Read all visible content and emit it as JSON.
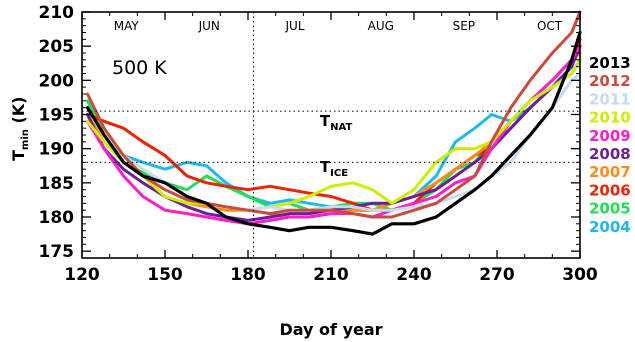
{
  "chart_data": {
    "type": "line",
    "xlabel": "Day of year",
    "ylabel": {
      "main": "T",
      "sub": "min",
      "unit": " (K)"
    },
    "xlim": [
      120,
      300
    ],
    "ylim": [
      174,
      210
    ],
    "x_ticks": [
      120,
      150,
      180,
      210,
      240,
      270,
      300
    ],
    "y_ticks": [
      175,
      180,
      185,
      190,
      195,
      200,
      205,
      210
    ],
    "annotation": "500 K",
    "months": [
      {
        "label": "MAY",
        "center": 136
      },
      {
        "label": "JUN",
        "center": 166
      },
      {
        "label": "JUL",
        "center": 197
      },
      {
        "label": "AUG",
        "center": 228
      },
      {
        "label": "SEP",
        "center": 258
      },
      {
        "label": "OCT",
        "center": 289
      }
    ],
    "vertical_marker": 182,
    "reference_lines": [
      {
        "main": "T",
        "sub": "NAT",
        "value": 195.5,
        "label_x": 206,
        "label_y": 193.3
      },
      {
        "main": "T",
        "sub": "ICE",
        "value": 188,
        "label_x": 206,
        "label_y": 186.6
      }
    ],
    "grid": false,
    "legend_position": "right",
    "series": [
      {
        "name": "2004",
        "color": "#1fb8ee",
        "x": [
          122,
          128,
          135,
          142,
          150,
          158,
          165,
          172,
          180,
          188,
          195,
          202,
          210,
          218,
          225,
          232,
          240,
          248,
          255,
          262,
          268,
          275,
          282,
          290,
          297,
          300
        ],
        "y": [
          196,
          192,
          189,
          188,
          187,
          188,
          187.5,
          185,
          183,
          182,
          182.5,
          182,
          181.5,
          181,
          181,
          182,
          183,
          186,
          191,
          193,
          195,
          194,
          196,
          199,
          201,
          203
        ]
      },
      {
        "name": "2005",
        "color": "#22dd55",
        "x": [
          122,
          128,
          135,
          142,
          150,
          158,
          165,
          172,
          180,
          188,
          195,
          202,
          210,
          218,
          225,
          232,
          240,
          248,
          255,
          262,
          268,
          275,
          282,
          290,
          297,
          300
        ],
        "y": [
          197,
          192,
          188,
          186.5,
          185,
          184,
          186,
          184.5,
          183,
          181.5,
          182,
          181,
          181.5,
          182,
          182,
          181,
          182,
          184,
          187,
          188,
          191,
          194,
          197,
          200,
          203,
          205
        ]
      },
      {
        "name": "2006",
        "color": "#ee2200",
        "x": [
          122,
          128,
          135,
          142,
          150,
          158,
          165,
          172,
          180,
          188,
          195,
          202,
          210,
          218,
          225,
          232,
          240,
          248,
          255,
          262,
          268,
          275,
          282,
          290,
          297,
          300
        ],
        "y": [
          195,
          194,
          193,
          191,
          189,
          186,
          185,
          184.5,
          184,
          184.5,
          184,
          183.5,
          183,
          182,
          181,
          181,
          182,
          185,
          187,
          189,
          190,
          193,
          196,
          199,
          202,
          206
        ]
      },
      {
        "name": "2007",
        "color": "#ff8c1a",
        "x": [
          122,
          128,
          135,
          142,
          150,
          158,
          165,
          172,
          180,
          188,
          195,
          202,
          210,
          218,
          225,
          232,
          240,
          248,
          255,
          262,
          268,
          275,
          282,
          290,
          297,
          300
        ],
        "y": [
          195,
          191,
          188,
          186,
          183,
          182,
          181.5,
          181,
          181,
          180.5,
          180,
          180,
          180.5,
          181,
          181,
          182,
          183,
          185,
          187,
          189,
          191,
          194,
          197,
          200,
          203,
          204
        ]
      },
      {
        "name": "2008",
        "color": "#6a1f9c",
        "x": [
          122,
          128,
          135,
          142,
          150,
          158,
          165,
          172,
          180,
          188,
          195,
          202,
          210,
          218,
          225,
          232,
          240,
          248,
          255,
          262,
          268,
          275,
          282,
          290,
          297,
          300
        ],
        "y": [
          195,
          190,
          187,
          185,
          183,
          181.5,
          180.5,
          180,
          179.5,
          180,
          180.5,
          180.5,
          181,
          181.5,
          182,
          182,
          183,
          184,
          186,
          188,
          190,
          193,
          196,
          199,
          202,
          205
        ]
      },
      {
        "name": "2009",
        "color": "#ff1ecc",
        "x": [
          122,
          128,
          135,
          142,
          150,
          158,
          165,
          172,
          180,
          188,
          195,
          202,
          210,
          218,
          225,
          232,
          240,
          248,
          255,
          262,
          268,
          275,
          282,
          290,
          297,
          300
        ],
        "y": [
          194,
          190,
          186,
          183,
          181,
          180.5,
          180,
          179.5,
          179,
          179.5,
          180,
          180,
          180.5,
          180.5,
          180,
          181,
          182,
          183,
          185,
          186,
          190,
          194,
          197,
          200,
          203,
          205
        ]
      },
      {
        "name": "2010",
        "color": "#ccee00",
        "x": [
          122,
          128,
          135,
          142,
          150,
          158,
          165,
          172,
          180,
          188,
          195,
          202,
          210,
          218,
          225,
          232,
          240,
          248,
          255,
          262,
          268,
          275,
          282,
          290,
          297,
          300
        ],
        "y": [
          194,
          191,
          188,
          186,
          183,
          182,
          182,
          181.5,
          181,
          181.5,
          182,
          183,
          184.5,
          185,
          184,
          182,
          184,
          188,
          190,
          190,
          191,
          194,
          197,
          199,
          201,
          203
        ]
      },
      {
        "name": "2011",
        "color": "#c6daf0",
        "x": [
          122,
          128,
          135,
          142,
          150,
          158,
          165,
          172,
          180,
          188,
          195,
          202,
          210,
          218,
          225,
          232,
          240,
          248,
          255,
          262,
          268,
          275,
          282,
          290,
          297,
          300
        ],
        "y": [
          196,
          192,
          189,
          187,
          185,
          183,
          182,
          181.5,
          181,
          181.5,
          181,
          181,
          181.5,
          181.5,
          181,
          181,
          181.5,
          182,
          183,
          184,
          186,
          188,
          192,
          196,
          200,
          201
        ]
      },
      {
        "name": "2012",
        "color": "#c84c3c",
        "x": [
          122,
          128,
          135,
          142,
          150,
          158,
          165,
          172,
          180,
          188,
          195,
          202,
          210,
          218,
          225,
          232,
          240,
          248,
          255,
          262,
          268,
          275,
          282,
          290,
          297,
          300
        ],
        "y": [
          198,
          193,
          189,
          186,
          184,
          182.5,
          182,
          181.5,
          181,
          180.5,
          181,
          181,
          181,
          180.5,
          180,
          180,
          181,
          182,
          184,
          186,
          191,
          196,
          200,
          204,
          207,
          210
        ]
      },
      {
        "name": "2013",
        "color": "#000000",
        "x": [
          122,
          128,
          135,
          142,
          150,
          158,
          165,
          172,
          180,
          188,
          195,
          202,
          210,
          218,
          225,
          232,
          240,
          248,
          255,
          262,
          268,
          275,
          282,
          290,
          297,
          300
        ],
        "y": [
          196,
          192,
          188,
          186,
          185,
          183,
          182,
          180,
          179,
          178.5,
          178,
          178.5,
          178.5,
          178,
          177.5,
          179,
          179,
          180,
          182,
          184,
          186,
          189,
          192,
          196,
          203,
          207
        ]
      }
    ]
  }
}
